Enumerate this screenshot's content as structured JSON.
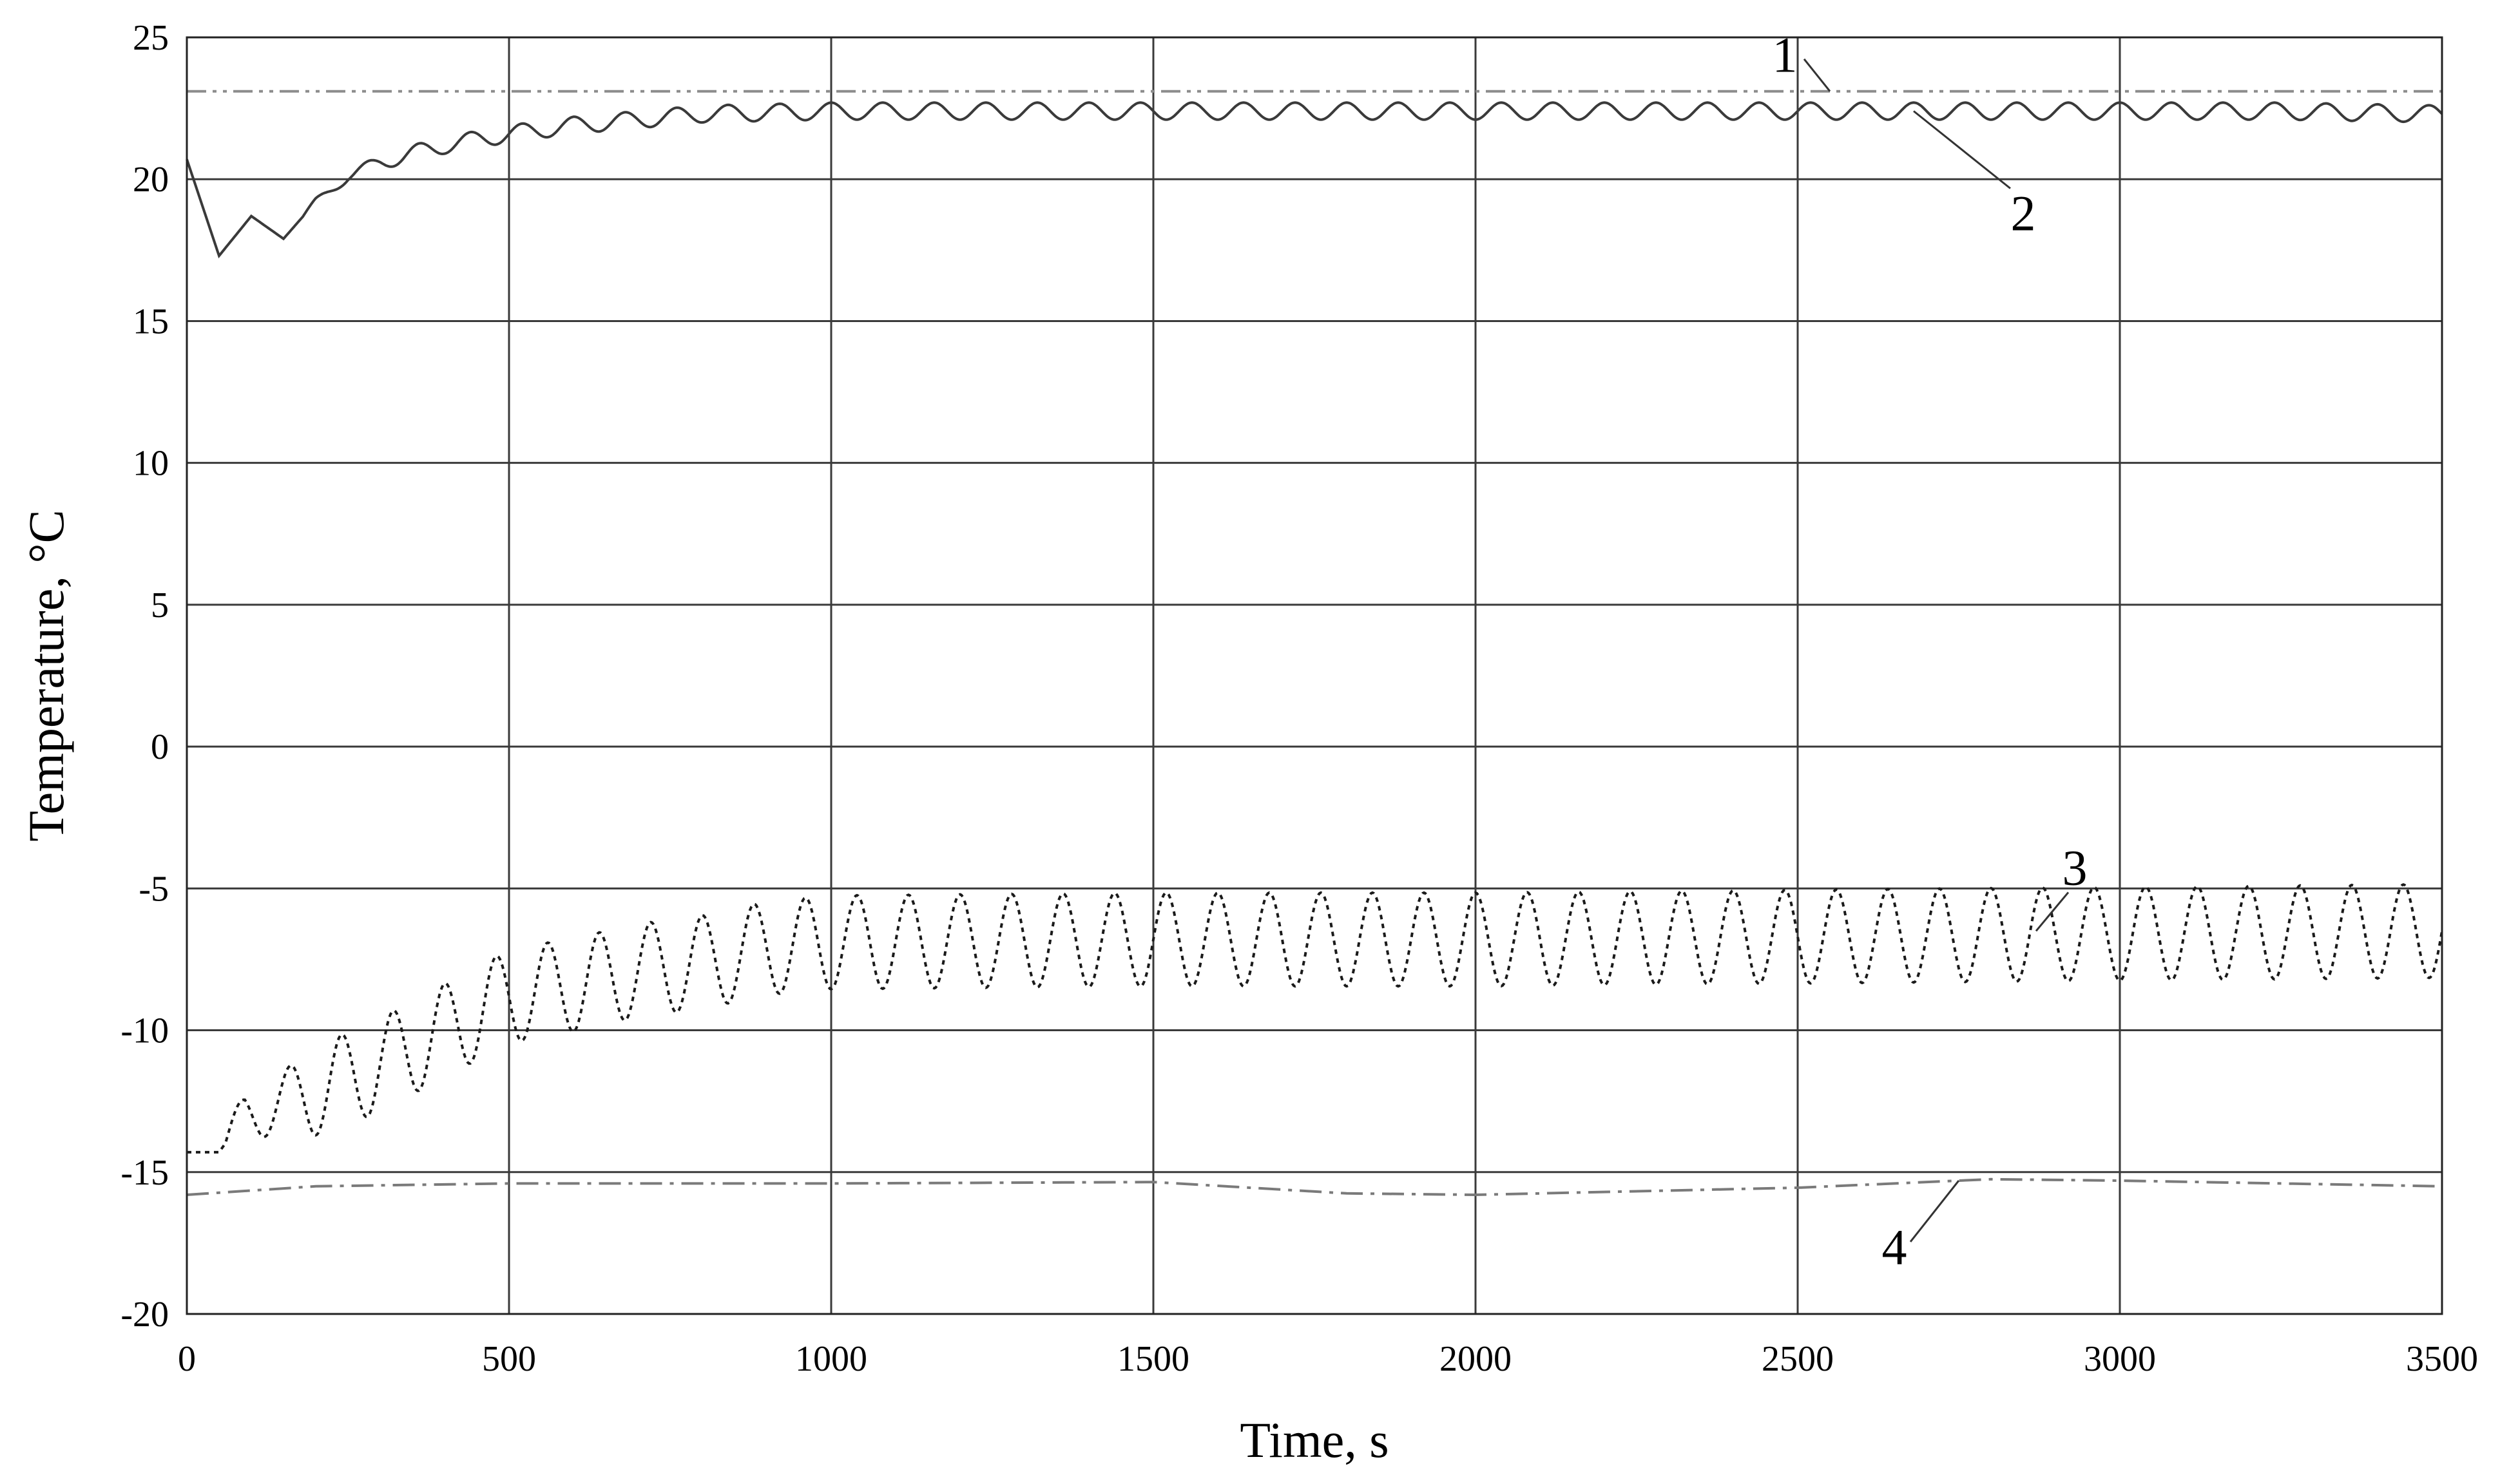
{
  "chart_data": {
    "type": "line",
    "xlabel": "Time, s",
    "ylabel": "Temperature, °C",
    "xlim": [
      0,
      3500
    ],
    "ylim": [
      -20,
      25
    ],
    "xticks": [
      0,
      500,
      1000,
      1500,
      2000,
      2500,
      3000,
      3500
    ],
    "yticks": [
      25,
      20,
      15,
      10,
      5,
      0,
      -5,
      -10,
      -15,
      -20
    ],
    "grid": true,
    "legend": "none",
    "series": [
      {
        "name": "1",
        "style": "dash-dot-dot",
        "color": "#8c8c8c",
        "x": [
          0,
          500,
          1000,
          1500,
          2000,
          2500,
          3000,
          3500
        ],
        "y": [
          23.1,
          23.1,
          23.1,
          23.1,
          23.1,
          23.1,
          23.1,
          23.1
        ]
      },
      {
        "name": "2",
        "style": "solid",
        "color": "#3a3a3a",
        "x": [
          0,
          25,
          50,
          75,
          100,
          125,
          150,
          200,
          250,
          300,
          350,
          400,
          450,
          500,
          600,
          700,
          800,
          900,
          1000,
          1250,
          1500,
          1750,
          2000,
          2250,
          2500,
          2750,
          3000,
          3250,
          3500
        ],
        "y": [
          20.7,
          19.0,
          17.3,
          18.0,
          18.7,
          18.3,
          17.9,
          19.2,
          20.1,
          20.6,
          20.9,
          21.2,
          21.4,
          21.6,
          21.9,
          22.1,
          22.3,
          22.35,
          22.4,
          22.4,
          22.4,
          22.4,
          22.4,
          22.4,
          22.4,
          22.4,
          22.4,
          22.4,
          22.3
        ],
        "osc_period_s": 80,
        "osc_amplitude": 0.3,
        "osc_start_s": 180
      },
      {
        "name": "3",
        "style": "dotted",
        "color": "#1a1a1a",
        "x": [
          0,
          50,
          90,
          200,
          300,
          400,
          500,
          600,
          700,
          800,
          900,
          1000,
          1500,
          2000,
          2500,
          3000,
          3500
        ],
        "y": [
          -14.3,
          -14.3,
          -13.0,
          -12.2,
          -11.2,
          -10.0,
          -8.8,
          -8.4,
          -7.9,
          -7.6,
          -7.1,
          -6.9,
          -6.8,
          -6.8,
          -6.7,
          -6.6,
          -6.5
        ],
        "osc_period_s": 80,
        "osc_amplitude": 1.65,
        "osc_start_s": 60
      },
      {
        "name": "4",
        "style": "dash-dot",
        "color": "#7a7a7a",
        "x": [
          0,
          200,
          500,
          1000,
          1500,
          1800,
          2000,
          2500,
          2800,
          3000,
          3500
        ],
        "y": [
          -15.8,
          -15.5,
          -15.4,
          -15.4,
          -15.35,
          -15.75,
          -15.8,
          -15.55,
          -15.25,
          -15.3,
          -15.5
        ]
      }
    ],
    "annotations": [
      {
        "text": "1",
        "at_x": 2550,
        "at_y": 23.1
      },
      {
        "text": "2",
        "at_x": 2680,
        "at_y": 22.4
      },
      {
        "text": "3",
        "at_x": 2870,
        "at_y": -6.5
      },
      {
        "text": "4",
        "at_x": 2750,
        "at_y": -15.3
      }
    ]
  }
}
